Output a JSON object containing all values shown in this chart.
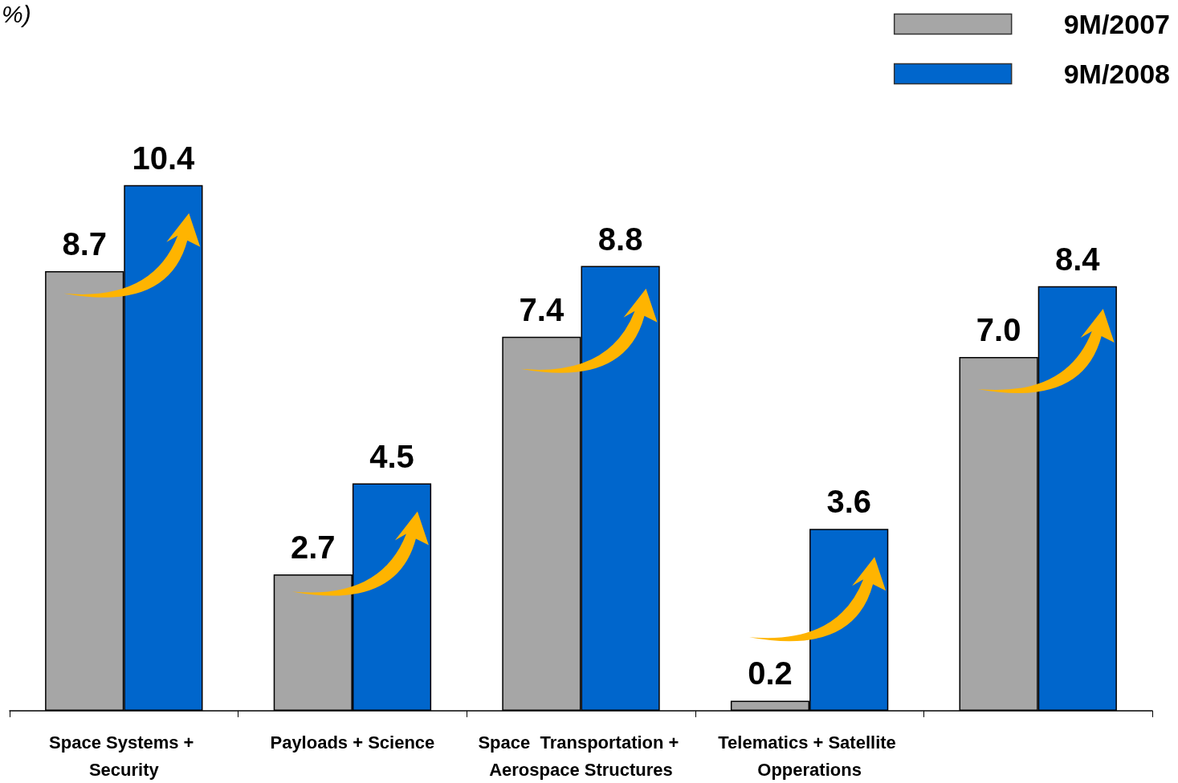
{
  "chart_data": {
    "type": "bar",
    "annotations": [
      "%)"
    ],
    "categories": [
      "Space Systems + Security",
      "Payloads + Science",
      "Space  Transportation + Aerospace Structures",
      "Telematics + Satellite Opperations",
      null
    ],
    "series": [
      {
        "name": "9M/2007",
        "color": "#a6a6a6",
        "values": [
          8.7,
          2.7,
          7.4,
          0.2,
          7.0
        ],
        "value_labels": [
          "8.7",
          "2.7",
          "7.4",
          "0.2",
          "7.0"
        ]
      },
      {
        "name": "9M/2008",
        "color": "#0066cc",
        "values": [
          10.4,
          4.5,
          8.8,
          3.6,
          8.4
        ],
        "value_labels": [
          "10.4",
          "4.5",
          "8.8",
          "3.6",
          "8.4"
        ]
      }
    ],
    "legend": "top right"
  }
}
